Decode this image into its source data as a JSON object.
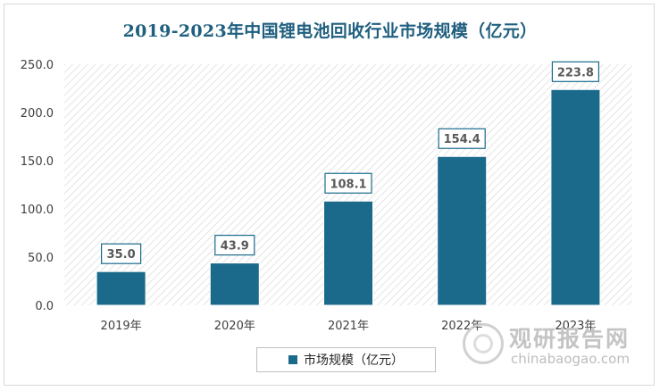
{
  "chart_data": {
    "type": "bar",
    "title": "2019-2023年中国锂电池回收行业市场规模（亿元）",
    "categories": [
      "2019年",
      "2020年",
      "2021年",
      "2022年",
      "2023年"
    ],
    "series": [
      {
        "name": "市场规模（亿元）",
        "values": [
          35.0,
          43.9,
          108.1,
          154.4,
          223.8
        ]
      }
    ],
    "data_labels": [
      "35.0",
      "43.9",
      "108.1",
      "154.4",
      "223.8"
    ],
    "yticks": [
      "0.0",
      "50.0",
      "100.0",
      "150.0",
      "200.0",
      "250.0"
    ],
    "ylim": [
      0,
      250
    ],
    "grid": false,
    "legend_position": "bottom",
    "bar_color": "#1b6a8c",
    "background_pattern": "diagonal-hatch"
  },
  "watermark": {
    "title": "观研报告网",
    "url": "chinabaogao.com"
  }
}
